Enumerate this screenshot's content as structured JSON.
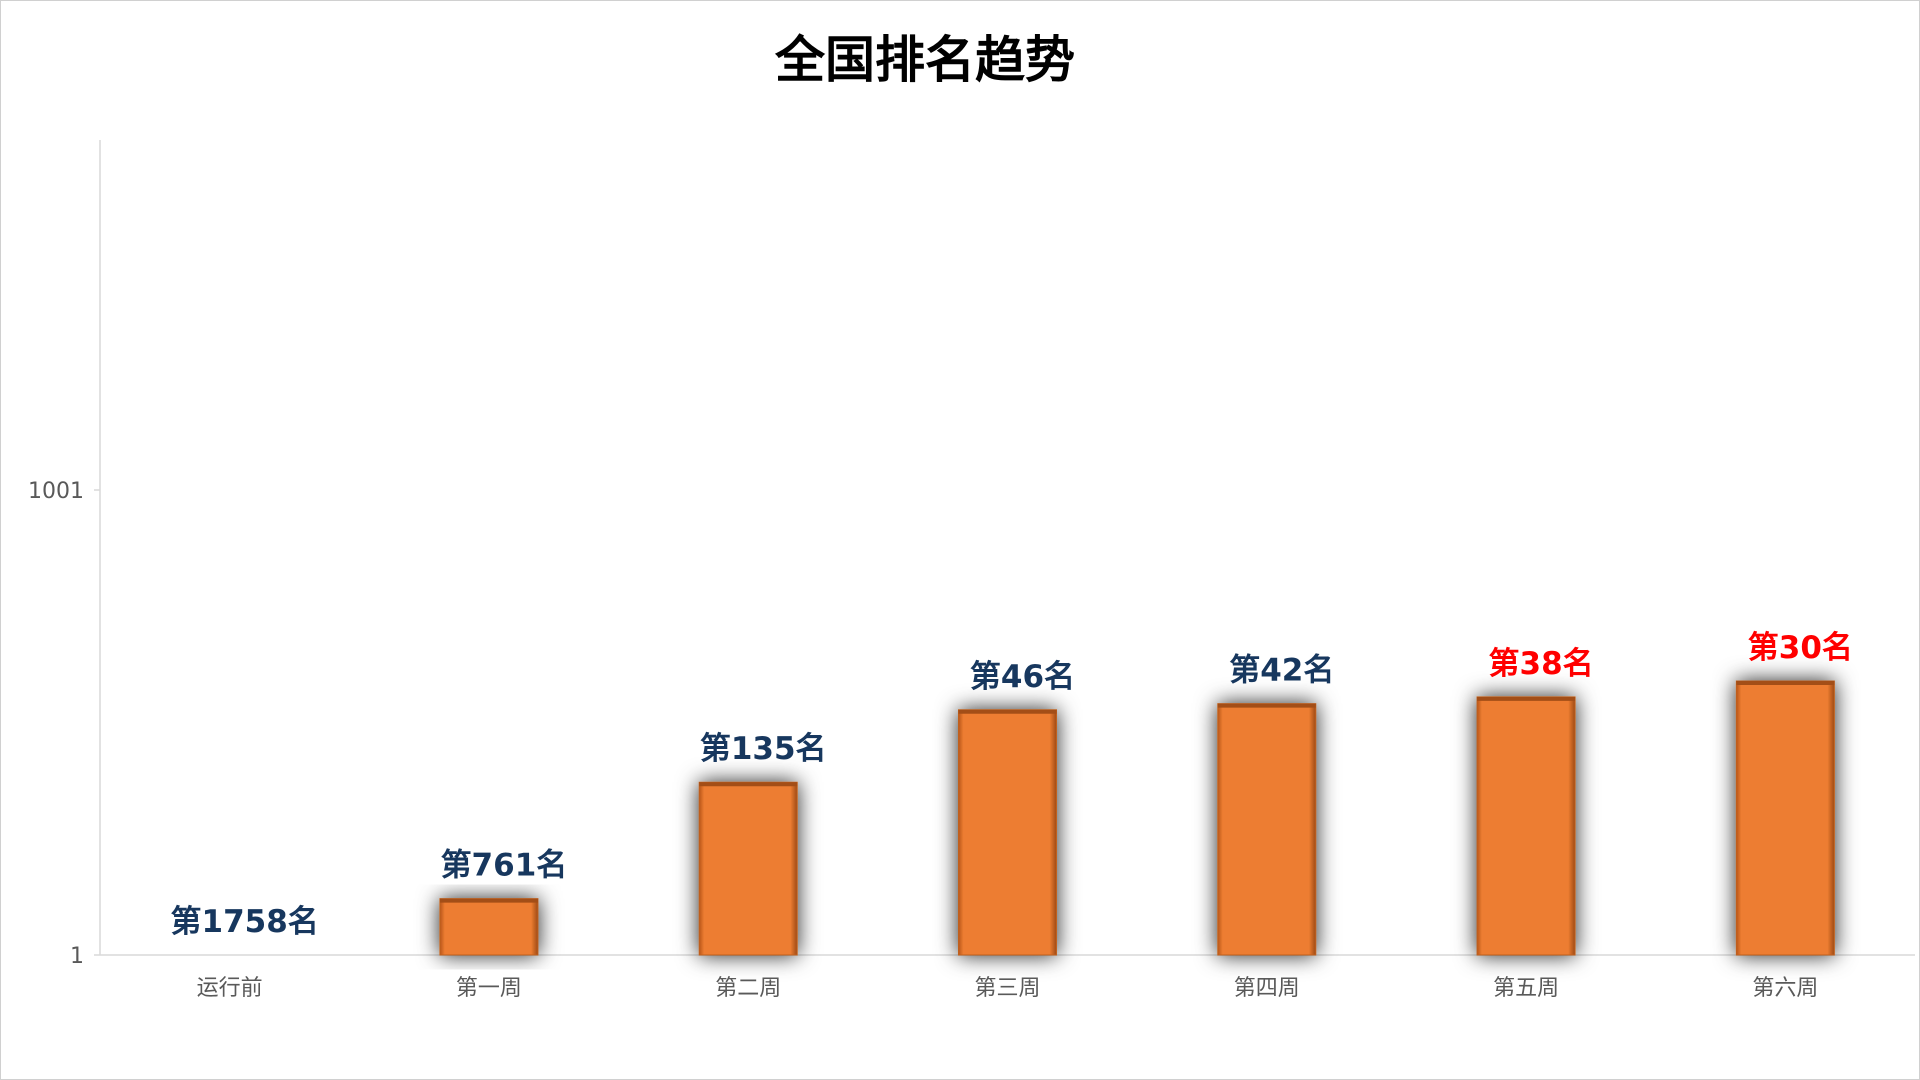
{
  "chart_data": {
    "type": "bar",
    "title": "全国排名趋势",
    "xlabel": "",
    "ylabel": "",
    "y_scale": "log",
    "y_reversed": true,
    "ylim": [
      1,
      1758
    ],
    "y_ticks": [
      {
        "value": 1,
        "label": "1"
      },
      {
        "value": 1001,
        "label": "1001"
      }
    ],
    "categories": [
      "运行前",
      "第一周",
      "第二周",
      "第三周",
      "第四周",
      "第五周",
      "第六周"
    ],
    "values": [
      1758,
      761,
      135,
      46,
      42,
      38,
      30
    ],
    "data_labels": [
      "第1758名",
      "第761名",
      "第135名",
      "第46名",
      "第42名",
      "第38名",
      "第30名"
    ],
    "label_colors": [
      "#17375e",
      "#17375e",
      "#17375e",
      "#17375e",
      "#17375e",
      "#ff0000",
      "#ff0000"
    ],
    "bar_color": "#ed7d31",
    "bar_shadow_color": "#7f7f7f",
    "grid": false,
    "legend": "none"
  }
}
